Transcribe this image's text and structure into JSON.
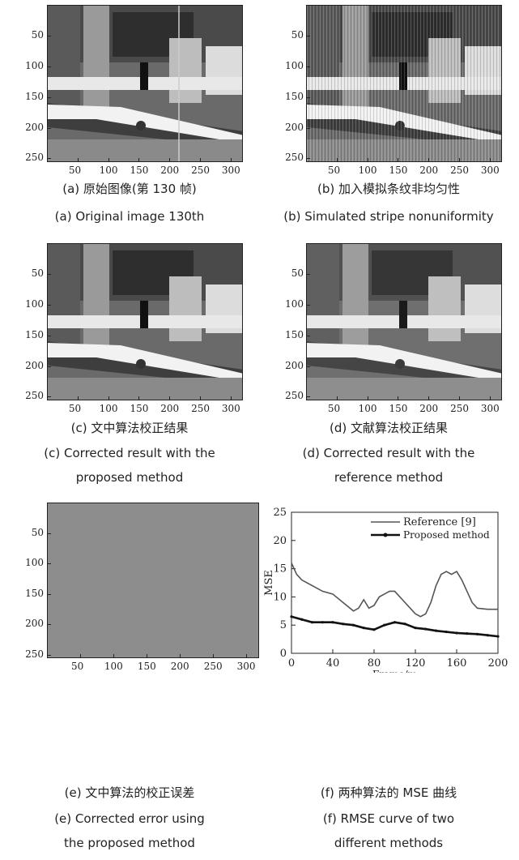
{
  "figure": {
    "image_ticks_y": [
      "50",
      "100",
      "150",
      "200",
      "250"
    ],
    "image_ticks_x": [
      "50",
      "100",
      "150",
      "200",
      "250",
      "300"
    ],
    "panels": [
      {
        "id": "a",
        "caption_cn": "(a) 原始图像(第 130 帧)",
        "caption_en": [
          "(a) Original image 130th"
        ]
      },
      {
        "id": "b",
        "caption_cn": "(b) 加入模拟条纹非均匀性",
        "caption_en": [
          "(b) Simulated stripe nonuniformity"
        ]
      },
      {
        "id": "c",
        "caption_cn": "(c) 文中算法校正结果",
        "caption_en": [
          "(c) Corrected result with the",
          "proposed method"
        ]
      },
      {
        "id": "d",
        "caption_cn": "(d) 文献算法校正结果",
        "caption_en": [
          "(d) Corrected result with the",
          "reference method"
        ]
      },
      {
        "id": "e",
        "caption_cn": "(e) 文中算法的校正误差",
        "caption_en": [
          "(e) Corrected error using",
          "the proposed method"
        ]
      },
      {
        "id": "f",
        "caption_cn": "(f) 两种算法的 MSE 曲线",
        "caption_en": [
          "(f) RMSE curve of two",
          "different methods"
        ]
      }
    ]
  },
  "chart_data": {
    "type": "line",
    "xlabel": "Frame/m",
    "ylabel": "MSE",
    "xlim": [
      0,
      200
    ],
    "ylim": [
      0,
      25
    ],
    "xticks": [
      "0",
      "40",
      "80",
      "120",
      "160",
      "200"
    ],
    "yticks": [
      "0",
      "5",
      "10",
      "15",
      "20",
      "25"
    ],
    "legend_position": "top-right",
    "series": [
      {
        "name": "Reference [9]",
        "color": "#555555",
        "x": [
          0,
          5,
          10,
          20,
          30,
          40,
          50,
          60,
          65,
          70,
          75,
          80,
          85,
          90,
          95,
          100,
          105,
          110,
          115,
          120,
          125,
          130,
          135,
          140,
          145,
          150,
          155,
          160,
          165,
          170,
          175,
          180,
          190,
          200
        ],
        "y": [
          16,
          14,
          13,
          12,
          11,
          10.5,
          9,
          7.5,
          8,
          9.5,
          8,
          8.5,
          10,
          10.5,
          11,
          11,
          10,
          9,
          8,
          7,
          6.5,
          7,
          9,
          12,
          14,
          14.5,
          14,
          14.5,
          13,
          11,
          9,
          8,
          7.8,
          7.8
        ]
      },
      {
        "name": "Proposed method",
        "color": "#111111",
        "x": [
          0,
          10,
          20,
          30,
          40,
          50,
          60,
          70,
          80,
          90,
          100,
          110,
          120,
          130,
          140,
          150,
          160,
          170,
          180,
          190,
          200
        ],
        "y": [
          6.5,
          6,
          5.5,
          5.5,
          5.5,
          5.2,
          5,
          4.5,
          4.2,
          5,
          5.5,
          5.2,
          4.5,
          4.3,
          4.0,
          3.8,
          3.6,
          3.5,
          3.4,
          3.2,
          3.0
        ]
      }
    ]
  }
}
